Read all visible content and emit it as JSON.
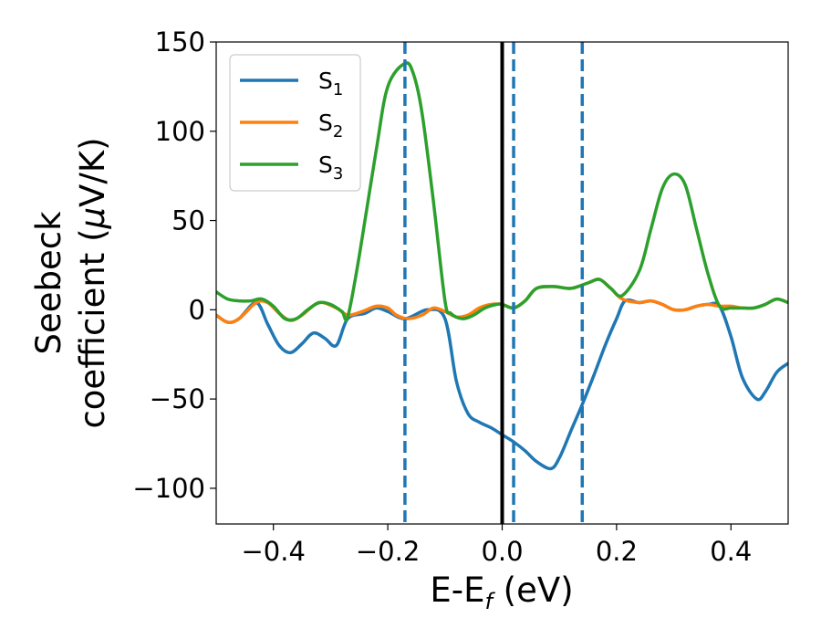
{
  "chart_data": {
    "type": "line",
    "title": "",
    "xlabel": "E-E",
    "xlabel_sub": "f",
    "xlabel_unit": " (eV)",
    "ylabel_line1": "Seebeck",
    "ylabel_line2": "coefficient  (",
    "ylabel_mu": "μ",
    "ylabel_unit": "V/K)",
    "xlim": [
      -0.5,
      0.5
    ],
    "ylim": [
      -120,
      150
    ],
    "xticks": [
      -0.4,
      -0.2,
      0.0,
      0.2,
      0.4
    ],
    "xtick_labels": [
      "−0.4",
      "−0.2",
      "0.0",
      "0.2",
      "0.4"
    ],
    "yticks": [
      -100,
      -50,
      0,
      50,
      100,
      150
    ],
    "ytick_labels": [
      "−100",
      "−50",
      "0",
      "50",
      "100",
      "150"
    ],
    "legend": {
      "position": "upper-left"
    },
    "vlines": [
      {
        "x": 0.0,
        "style": "solid",
        "color": "#000000"
      },
      {
        "x": -0.17,
        "style": "dashed",
        "color": "#1f77b4"
      },
      {
        "x": 0.02,
        "style": "dashed",
        "color": "#1f77b4"
      },
      {
        "x": 0.14,
        "style": "dashed",
        "color": "#1f77b4"
      }
    ],
    "series": [
      {
        "name": "S",
        "sub": "1",
        "color": "#1f77b4",
        "points": [
          [
            -0.5,
            -3
          ],
          [
            -0.48,
            -7
          ],
          [
            -0.46,
            -5
          ],
          [
            -0.43,
            4
          ],
          [
            -0.41,
            -8
          ],
          [
            -0.39,
            -20
          ],
          [
            -0.37,
            -24
          ],
          [
            -0.35,
            -19
          ],
          [
            -0.33,
            -13
          ],
          [
            -0.31,
            -16
          ],
          [
            -0.29,
            -20
          ],
          [
            -0.27,
            -5
          ],
          [
            -0.24,
            -2
          ],
          [
            -0.22,
            1
          ],
          [
            -0.2,
            -1
          ],
          [
            -0.17,
            -5
          ],
          [
            -0.13,
            0
          ],
          [
            -0.1,
            -5
          ],
          [
            -0.08,
            -40
          ],
          [
            -0.06,
            -58
          ],
          [
            -0.04,
            -63
          ],
          [
            -0.02,
            -66
          ],
          [
            0.0,
            -70
          ],
          [
            0.02,
            -74
          ],
          [
            0.04,
            -79
          ],
          [
            0.06,
            -85
          ],
          [
            0.085,
            -89
          ],
          [
            0.1,
            -83
          ],
          [
            0.12,
            -68
          ],
          [
            0.14,
            -53
          ],
          [
            0.16,
            -37
          ],
          [
            0.18,
            -20
          ],
          [
            0.2,
            -5
          ],
          [
            0.215,
            5
          ],
          [
            0.24,
            4
          ],
          [
            0.26,
            5
          ],
          [
            0.28,
            3
          ],
          [
            0.3,
            0
          ],
          [
            0.32,
            0
          ],
          [
            0.34,
            2
          ],
          [
            0.36,
            3
          ],
          [
            0.38,
            2
          ],
          [
            0.4,
            -15
          ],
          [
            0.42,
            -38
          ],
          [
            0.445,
            -50
          ],
          [
            0.46,
            -46
          ],
          [
            0.48,
            -35
          ],
          [
            0.5,
            -30
          ]
        ]
      },
      {
        "name": "S",
        "sub": "2",
        "color": "#ff7f0e",
        "points": [
          [
            -0.5,
            -3
          ],
          [
            -0.48,
            -7
          ],
          [
            -0.46,
            -5
          ],
          [
            -0.43,
            4
          ],
          [
            -0.41,
            4
          ],
          [
            -0.39,
            -2
          ],
          [
            -0.37,
            -6
          ],
          [
            -0.35,
            -3
          ],
          [
            -0.32,
            4
          ],
          [
            -0.29,
            1
          ],
          [
            -0.27,
            -3
          ],
          [
            -0.245,
            -1
          ],
          [
            -0.22,
            2
          ],
          [
            -0.2,
            1
          ],
          [
            -0.185,
            -3
          ],
          [
            -0.165,
            -5
          ],
          [
            -0.14,
            -3
          ],
          [
            -0.12,
            1
          ],
          [
            -0.1,
            -1
          ],
          [
            -0.08,
            -4
          ],
          [
            -0.06,
            -3
          ],
          [
            -0.04,
            1
          ],
          [
            -0.02,
            3
          ],
          [
            0.0,
            3
          ],
          [
            0.02,
            1
          ],
          [
            0.04,
            5
          ],
          [
            0.06,
            12
          ],
          [
            0.09,
            13
          ],
          [
            0.12,
            12
          ],
          [
            0.15,
            15
          ],
          [
            0.17,
            17
          ],
          [
            0.19,
            12
          ],
          [
            0.21,
            6
          ],
          [
            0.24,
            4
          ],
          [
            0.26,
            5
          ],
          [
            0.28,
            3
          ],
          [
            0.3,
            0
          ],
          [
            0.32,
            0
          ],
          [
            0.34,
            2
          ],
          [
            0.36,
            3
          ],
          [
            0.38,
            2
          ],
          [
            0.4,
            2
          ],
          [
            0.42,
            1
          ],
          [
            0.44,
            1
          ],
          [
            0.46,
            3
          ],
          [
            0.48,
            6
          ],
          [
            0.5,
            4
          ]
        ]
      },
      {
        "name": "S",
        "sub": "3",
        "color": "#2ca02c",
        "points": [
          [
            -0.5,
            10
          ],
          [
            -0.48,
            6
          ],
          [
            -0.46,
            5
          ],
          [
            -0.44,
            5
          ],
          [
            -0.42,
            6
          ],
          [
            -0.4,
            2
          ],
          [
            -0.38,
            -5
          ],
          [
            -0.36,
            -5
          ],
          [
            -0.34,
            0
          ],
          [
            -0.32,
            4
          ],
          [
            -0.3,
            3
          ],
          [
            -0.28,
            -1
          ],
          [
            -0.27,
            -4
          ],
          [
            -0.25,
            30
          ],
          [
            -0.22,
            90
          ],
          [
            -0.2,
            125
          ],
          [
            -0.17,
            138
          ],
          [
            -0.155,
            132
          ],
          [
            -0.14,
            110
          ],
          [
            -0.12,
            60
          ],
          [
            -0.1,
            5
          ],
          [
            -0.09,
            -2
          ],
          [
            -0.07,
            -5
          ],
          [
            -0.05,
            -3
          ],
          [
            -0.03,
            1
          ],
          [
            -0.01,
            3
          ],
          [
            0.0,
            3
          ],
          [
            0.02,
            1
          ],
          [
            0.04,
            5
          ],
          [
            0.06,
            12
          ],
          [
            0.09,
            13
          ],
          [
            0.12,
            12
          ],
          [
            0.15,
            15
          ],
          [
            0.17,
            17
          ],
          [
            0.19,
            12
          ],
          [
            0.21,
            8
          ],
          [
            0.24,
            22
          ],
          [
            0.26,
            45
          ],
          [
            0.28,
            68
          ],
          [
            0.3,
            76
          ],
          [
            0.32,
            70
          ],
          [
            0.34,
            45
          ],
          [
            0.36,
            20
          ],
          [
            0.38,
            2
          ],
          [
            0.4,
            1
          ],
          [
            0.42,
            1
          ],
          [
            0.44,
            1
          ],
          [
            0.46,
            3
          ],
          [
            0.48,
            6
          ],
          [
            0.5,
            4
          ]
        ]
      }
    ]
  }
}
